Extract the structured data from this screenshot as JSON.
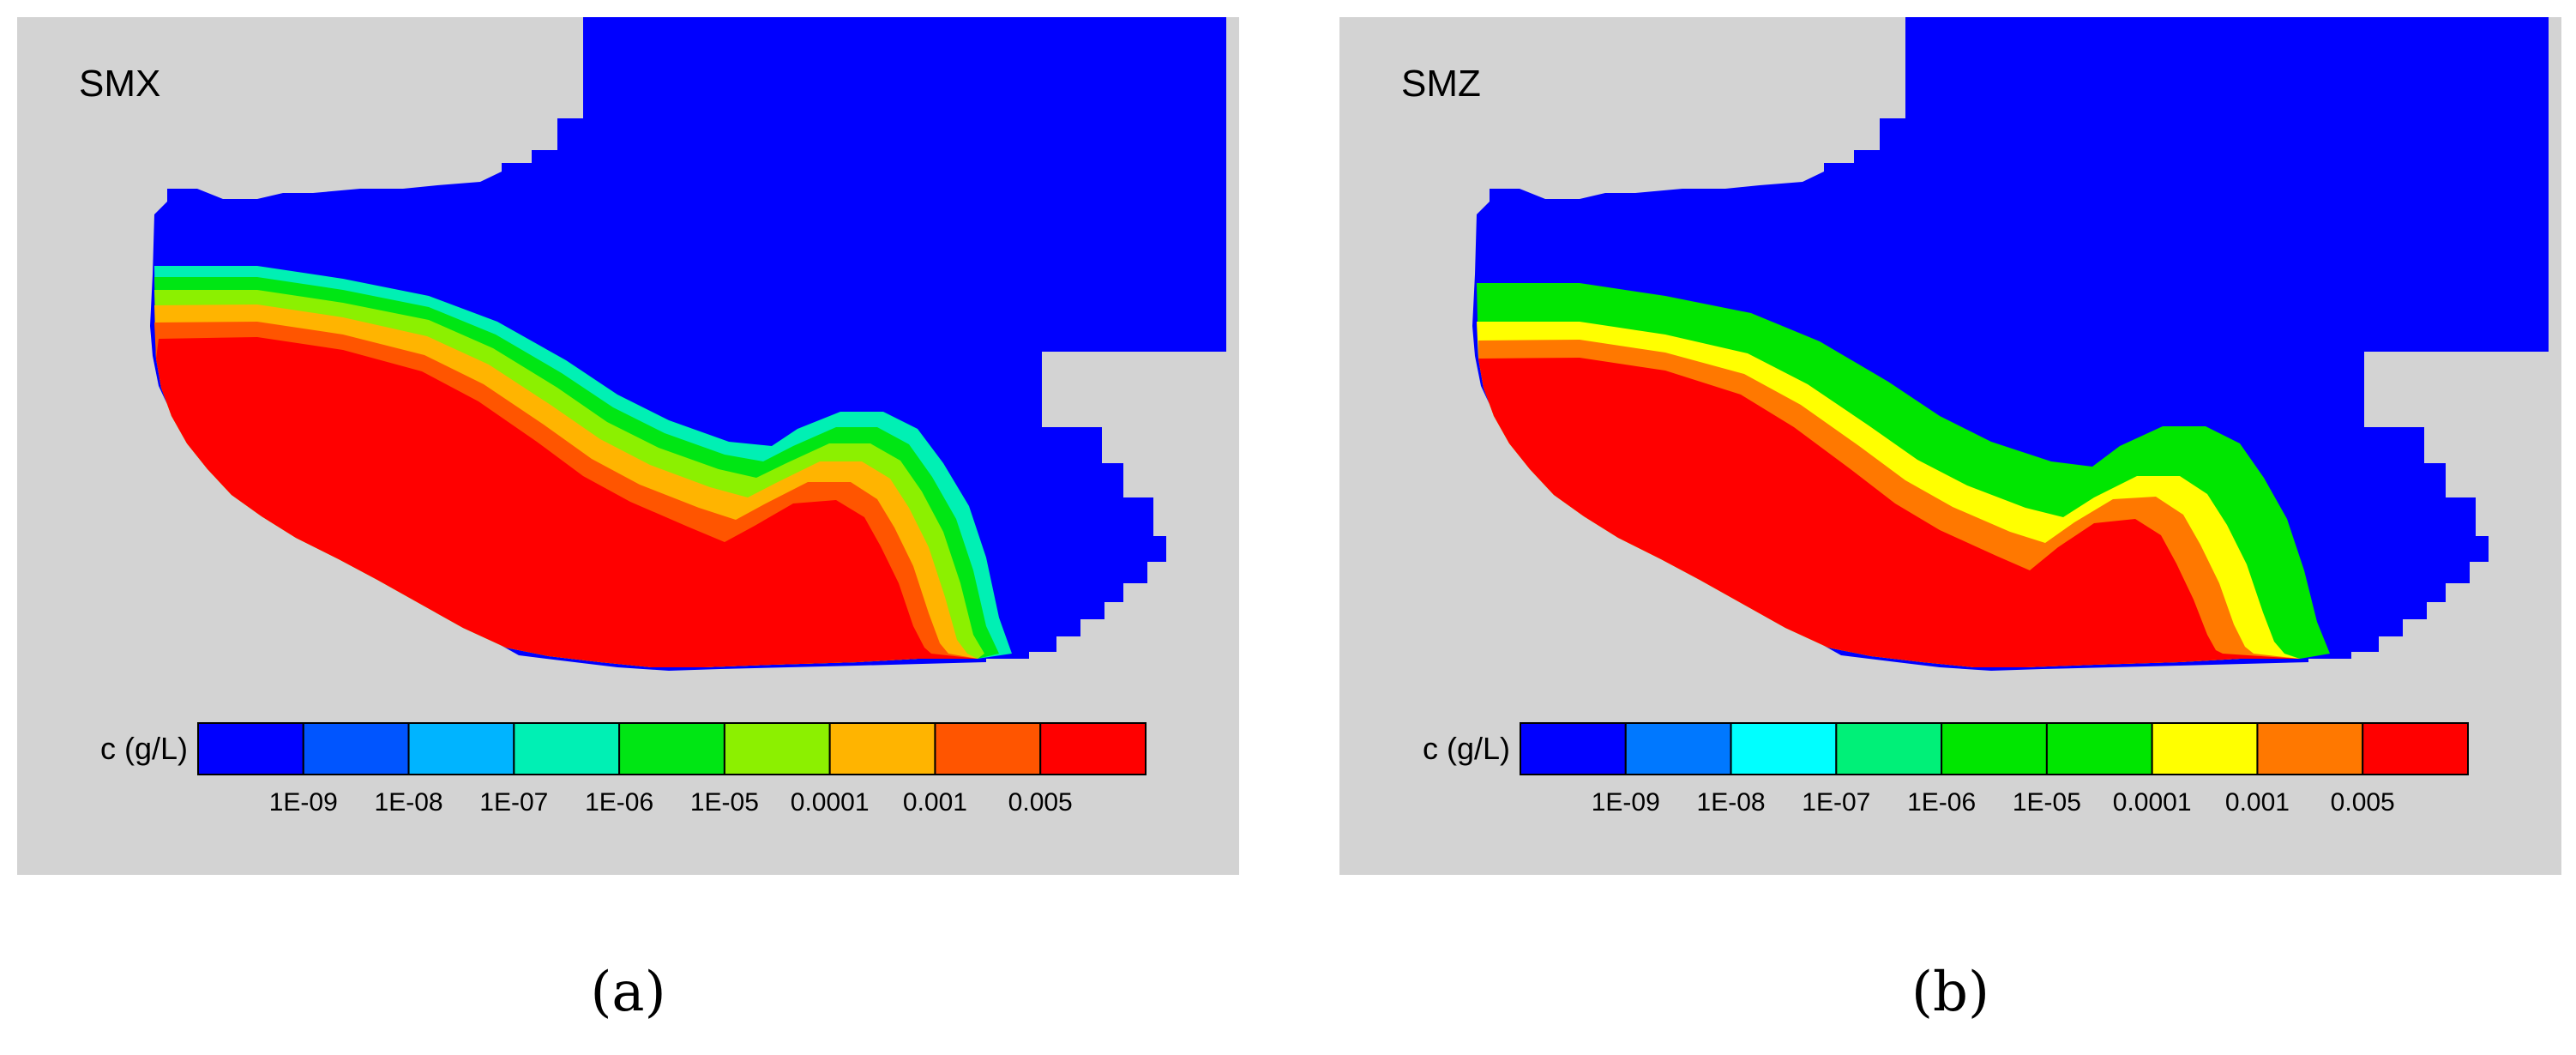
{
  "figure": {
    "panels": [
      {
        "id": "a",
        "label": "SMX",
        "caption": "(a)",
        "legend": {
          "title": "c (g/L)",
          "colors": [
            "#0000ff",
            "#0055ff",
            "#00b4ff",
            "#00f0b4",
            "#00e614",
            "#8cf000",
            "#ffb400",
            "#ff5500",
            "#ff0000"
          ],
          "ticks": [
            "1E-09",
            "1E-08",
            "1E-07",
            "1E-06",
            "1E-05",
            "0.0001",
            "0.001",
            "0.005"
          ]
        },
        "plume_colors": [
          "#00f0b4",
          "#00e614",
          "#8cf000",
          "#ffb400",
          "#ff5500",
          "#ff0000"
        ]
      },
      {
        "id": "b",
        "label": "SMZ",
        "caption": "(b)",
        "legend": {
          "title": "c (g/L)",
          "colors": [
            "#0000ff",
            "#0078ff",
            "#00ffff",
            "#00f078",
            "#00e600",
            "#00e600",
            "#ffff00",
            "#ff7800",
            "#ff0000"
          ],
          "ticks": [
            "1E-09",
            "1E-08",
            "1E-07",
            "1E-06",
            "1E-05",
            "0.0001",
            "0.001",
            "0.005"
          ]
        },
        "plume_colors": [
          "#00e600",
          "#ffff00",
          "#ff7800",
          "#ff0000"
        ]
      }
    ],
    "colors": {
      "background": "#d3d3d3",
      "domain": "#0000ff"
    }
  }
}
